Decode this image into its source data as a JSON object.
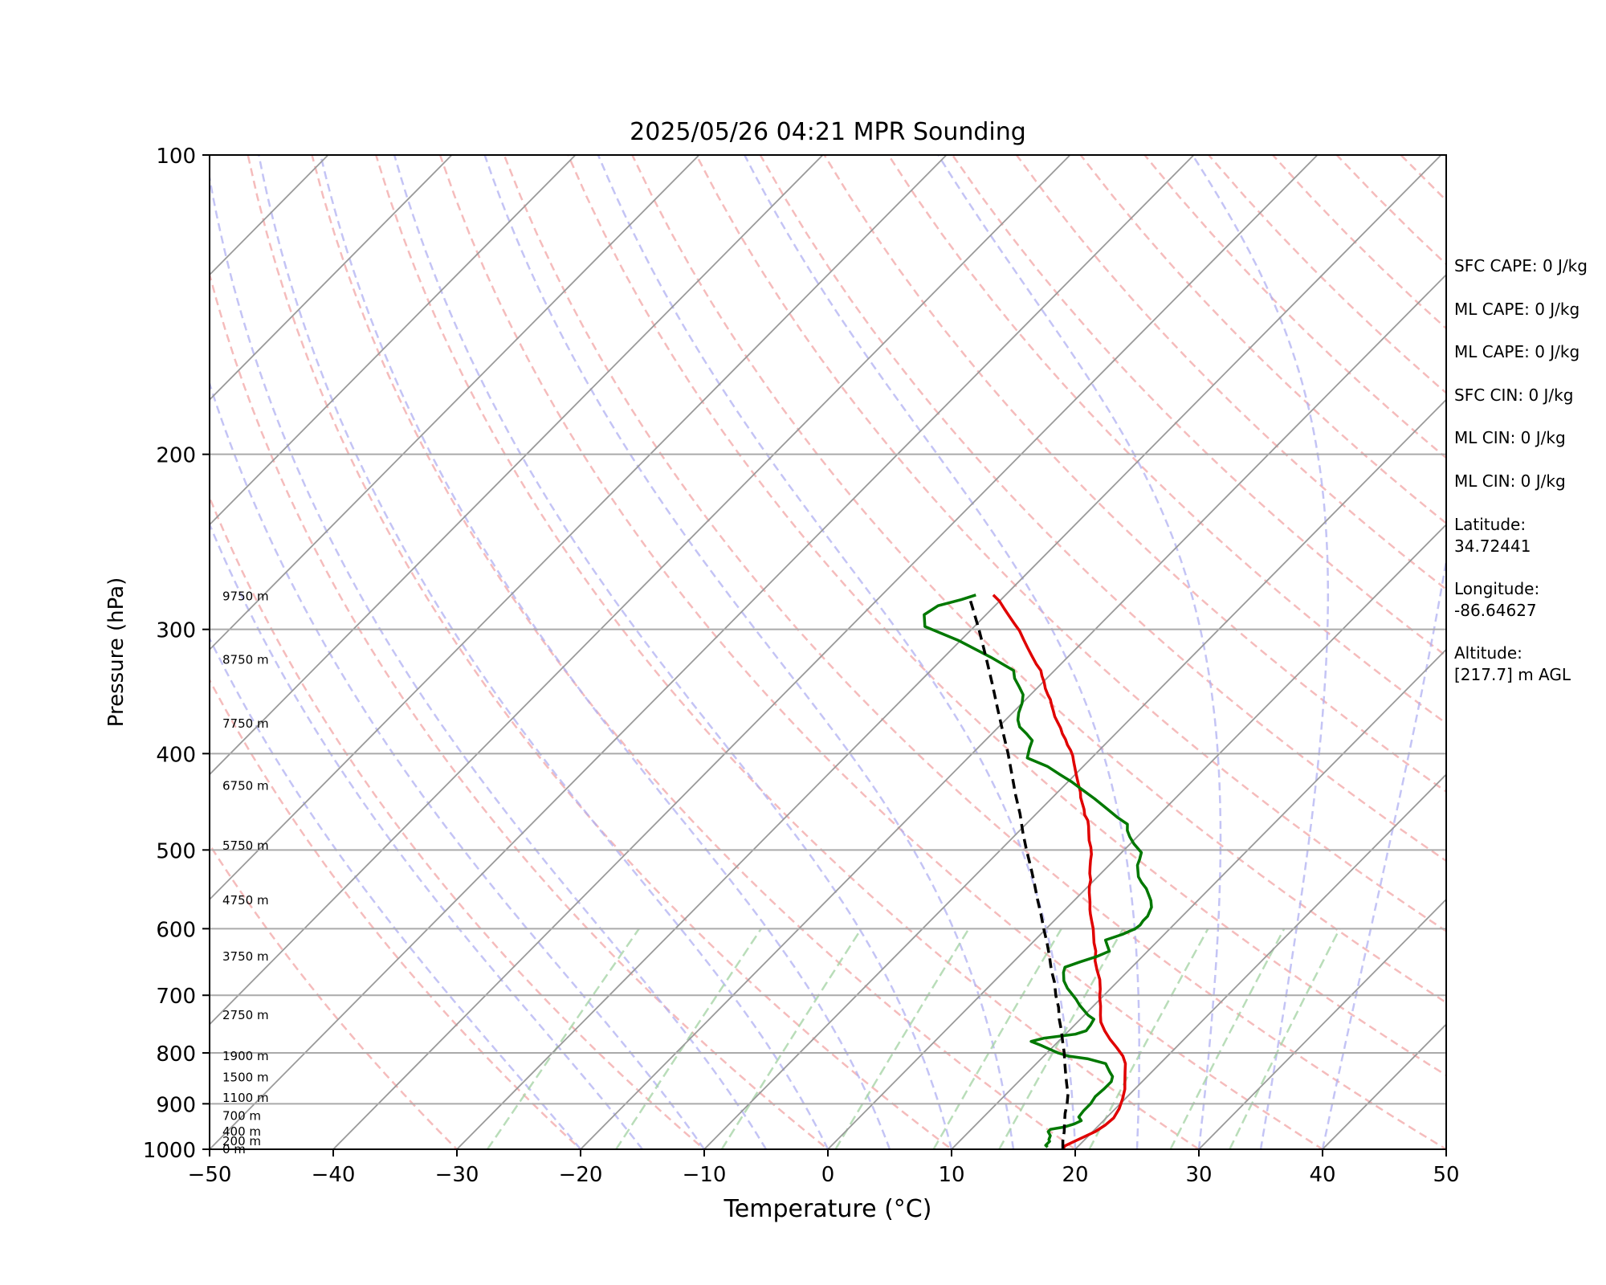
{
  "chart_data": {
    "type": "line",
    "subtype": "skew-T log-P sounding",
    "title": "2025/05/26 04:21 MPR Sounding",
    "xlabel": "Temperature (°C)",
    "ylabel": "Pressure (hPa)",
    "xlim": [
      -50,
      50
    ],
    "ylim": [
      1000,
      100
    ],
    "y_scale": "log",
    "x_ticks": [
      "−50",
      "−40",
      "−30",
      "−20",
      "−10",
      "0",
      "10",
      "20",
      "30",
      "40",
      "50"
    ],
    "y_ticks": [
      "100",
      "200",
      "300",
      "400",
      "500",
      "600",
      "700",
      "800",
      "900",
      "1000"
    ],
    "grid": "horizontal pressure lines",
    "height_labels": [
      "0 m",
      "200 m",
      "400 m",
      "700 m",
      "1100 m",
      "1500 m",
      "1900 m",
      "2750 m",
      "3750 m",
      "4750 m",
      "5750 m",
      "6750 m",
      "7750 m",
      "8750 m",
      "9750 m"
    ],
    "height_label_pressures": [
      1000,
      982,
      960,
      926,
      888,
      847,
      806,
      733,
      640,
      562,
      495,
      431,
      373,
      322,
      278
    ],
    "series": [
      {
        "color": "#e00000",
        "points": [
          [
            19,
            1000
          ],
          [
            18.9,
            992
          ],
          [
            19.3,
            982
          ],
          [
            20.2,
            960
          ],
          [
            20.5,
            945
          ],
          [
            20.6,
            930
          ],
          [
            20.3,
            910
          ],
          [
            19.8,
            890
          ],
          [
            19.2,
            870
          ],
          [
            18.8,
            860
          ],
          [
            18.4,
            850
          ],
          [
            17.8,
            835
          ],
          [
            17.2,
            820
          ],
          [
            16.4,
            806
          ],
          [
            15.2,
            790
          ],
          [
            14,
            775
          ],
          [
            12.9,
            760
          ],
          [
            11.9,
            745
          ],
          [
            11.3,
            733
          ],
          [
            10.6,
            718
          ],
          [
            9.8,
            703
          ],
          [
            9.2,
            690
          ],
          [
            8.4,
            675
          ],
          [
            7.4,
            660
          ],
          [
            6.5,
            646
          ],
          [
            5.8,
            632
          ],
          [
            5,
            620
          ],
          [
            4.4,
            610
          ],
          [
            3.8,
            600
          ],
          [
            3.1,
            590
          ],
          [
            2.4,
            580
          ],
          [
            2,
            574
          ],
          [
            1.4,
            564
          ],
          [
            0.6,
            552
          ],
          [
            0.1,
            544
          ],
          [
            -0.3,
            536
          ],
          [
            -0.9,
            528
          ],
          [
            -1.4,
            520
          ],
          [
            -1.9,
            512
          ],
          [
            -2.3,
            505
          ],
          [
            -2.9,
            497
          ],
          [
            -3.6,
            489
          ],
          [
            -4.2,
            481
          ],
          [
            -4.8,
            473
          ],
          [
            -5.3,
            467
          ],
          [
            -6,
            461
          ],
          [
            -6.5,
            455
          ],
          [
            -7.1,
            449
          ],
          [
            -7.7,
            443
          ],
          [
            -8.2,
            437
          ],
          [
            -8.8,
            431
          ],
          [
            -9.4,
            425
          ],
          [
            -10,
            419
          ],
          [
            -10.6,
            413
          ],
          [
            -11.1,
            408
          ],
          [
            -11.7,
            402
          ],
          [
            -12.3,
            397
          ],
          [
            -13,
            392
          ],
          [
            -13.6,
            387
          ],
          [
            -14.3,
            382
          ],
          [
            -14.9,
            377
          ],
          [
            -15.6,
            372
          ],
          [
            -16.3,
            367
          ],
          [
            -16.9,
            362
          ],
          [
            -17.4,
            358
          ],
          [
            -18,
            353
          ],
          [
            -18.6,
            349
          ],
          [
            -19.3,
            344
          ],
          [
            -19.9,
            339
          ],
          [
            -20.6,
            334
          ],
          [
            -21.1,
            330
          ],
          [
            -22,
            325
          ],
          [
            -23,
            319
          ],
          [
            -24,
            313
          ],
          [
            -25,
            307
          ],
          [
            -26,
            301
          ],
          [
            -27,
            296
          ],
          [
            -28,
            291
          ],
          [
            -29,
            286
          ],
          [
            -30,
            281
          ],
          [
            -31,
            277
          ]
        ]
      },
      {
        "color": "#007800",
        "points": [
          [
            17.6,
            995
          ],
          [
            17.3,
            991
          ],
          [
            17.3,
            982
          ],
          [
            17.1,
            978
          ],
          [
            16.9,
            969
          ],
          [
            16.4,
            960
          ],
          [
            16.4,
            955
          ],
          [
            17.3,
            950
          ],
          [
            17.9,
            943
          ],
          [
            18.2,
            936
          ],
          [
            17.7,
            928
          ],
          [
            17.6,
            915
          ],
          [
            17.6,
            900
          ],
          [
            17.4,
            885
          ],
          [
            17.5,
            870
          ],
          [
            17.5,
            855
          ],
          [
            17.2,
            845
          ],
          [
            16.6,
            836
          ],
          [
            16.1,
            828
          ],
          [
            15.6,
            820
          ],
          [
            13.8,
            811
          ],
          [
            12,
            806
          ],
          [
            10.9,
            800
          ],
          [
            9.9,
            793
          ],
          [
            8.9,
            786
          ],
          [
            7.8,
            779
          ],
          [
            8.6,
            773
          ],
          [
            10.8,
            766
          ],
          [
            11.4,
            760
          ],
          [
            11.3,
            750
          ],
          [
            11.1,
            740
          ],
          [
            10.3,
            733
          ],
          [
            9.6,
            725
          ],
          [
            8.8,
            716
          ],
          [
            8.1,
            707
          ],
          [
            7.4,
            699
          ],
          [
            6.5,
            689
          ],
          [
            5.6,
            677
          ],
          [
            4.9,
            664
          ],
          [
            4.6,
            656
          ],
          [
            5.4,
            648
          ],
          [
            6.3,
            640
          ],
          [
            6.9,
            632
          ],
          [
            6.3,
            624
          ],
          [
            5.7,
            616
          ],
          [
            6.6,
            608
          ],
          [
            7.2,
            600
          ],
          [
            7.3,
            595
          ],
          [
            7.2,
            589
          ],
          [
            7.2,
            583
          ],
          [
            7,
            577
          ],
          [
            6.8,
            571
          ],
          [
            6.2,
            562
          ],
          [
            5.6,
            555
          ],
          [
            4.9,
            547
          ],
          [
            4,
            539
          ],
          [
            3.3,
            532
          ],
          [
            2.8,
            525
          ],
          [
            2.3,
            518
          ],
          [
            2,
            511
          ],
          [
            1.6,
            503
          ],
          [
            0.3,
            493
          ],
          [
            -0.6,
            485
          ],
          [
            -1.3,
            478
          ],
          [
            -1.8,
            471
          ],
          [
            -3.1,
            464
          ],
          [
            -4.6,
            455
          ],
          [
            -6.5,
            444
          ],
          [
            -8,
            436
          ],
          [
            -9.7,
            427
          ],
          [
            -11.2,
            420
          ],
          [
            -12.9,
            412
          ],
          [
            -15.2,
            404
          ],
          [
            -15.8,
            395
          ],
          [
            -16.2,
            388
          ],
          [
            -17.2,
            382
          ],
          [
            -18.3,
            376
          ],
          [
            -19,
            370
          ],
          [
            -19.5,
            364
          ],
          [
            -20,
            356
          ],
          [
            -20.6,
            349
          ],
          [
            -21.5,
            343
          ],
          [
            -22.6,
            336
          ],
          [
            -23.3,
            330
          ],
          [
            -26.2,
            320
          ],
          [
            -30.1,
            308
          ],
          [
            -34,
            298
          ],
          [
            -35,
            290
          ],
          [
            -34.6,
            284
          ],
          [
            -33.2,
            280
          ],
          [
            -32.4,
            277
          ]
        ]
      },
      {
        "color": "#000000",
        "points": [
          [
            19,
            1000
          ],
          [
            18.3,
            980
          ],
          [
            17.7,
            960
          ],
          [
            17,
            940
          ],
          [
            16.3,
            920
          ],
          [
            15.7,
            900
          ],
          [
            15,
            880
          ],
          [
            14.1,
            860
          ],
          [
            13.2,
            840
          ],
          [
            12.3,
            820
          ],
          [
            11.4,
            800
          ],
          [
            10.4,
            780
          ],
          [
            9.4,
            760
          ],
          [
            8.3,
            740
          ],
          [
            7.3,
            720
          ],
          [
            6.1,
            700
          ],
          [
            5,
            680
          ],
          [
            3.7,
            660
          ],
          [
            2.5,
            640
          ],
          [
            1.2,
            620
          ],
          [
            -0.2,
            600
          ],
          [
            -1.6,
            580
          ],
          [
            -3.1,
            560
          ],
          [
            -4.6,
            540
          ],
          [
            -6.2,
            520
          ],
          [
            -7.9,
            500
          ],
          [
            -9.6,
            480
          ],
          [
            -11.3,
            460
          ],
          [
            -13.2,
            440
          ],
          [
            -15.1,
            420
          ],
          [
            -17.1,
            400
          ],
          [
            -19.3,
            380
          ],
          [
            -21.6,
            360
          ],
          [
            -24,
            340
          ],
          [
            -26.6,
            320
          ],
          [
            -29.4,
            300
          ],
          [
            -31.7,
            285
          ],
          [
            -32.5,
            280
          ]
        ]
      }
    ]
  },
  "annotations": {
    "sfc_cape": "SFC CAPE: 0 J/kg",
    "ml_cape_1": "ML CAPE: 0 J/kg",
    "ml_cape_2": "ML CAPE: 0 J/kg",
    "sfc_cin": "SFC CIN: 0 J/kg",
    "ml_cin_1": "ML CIN: 0 J/kg",
    "ml_cin_2": "ML CIN: 0 J/kg",
    "latitude_label": "Latitude:",
    "latitude_value": "34.72441",
    "longitude_label": "Longitude:",
    "longitude_value": "-86.64627",
    "altitude_label": "Altitude:",
    "altitude_value": "[217.7] m AGL"
  }
}
